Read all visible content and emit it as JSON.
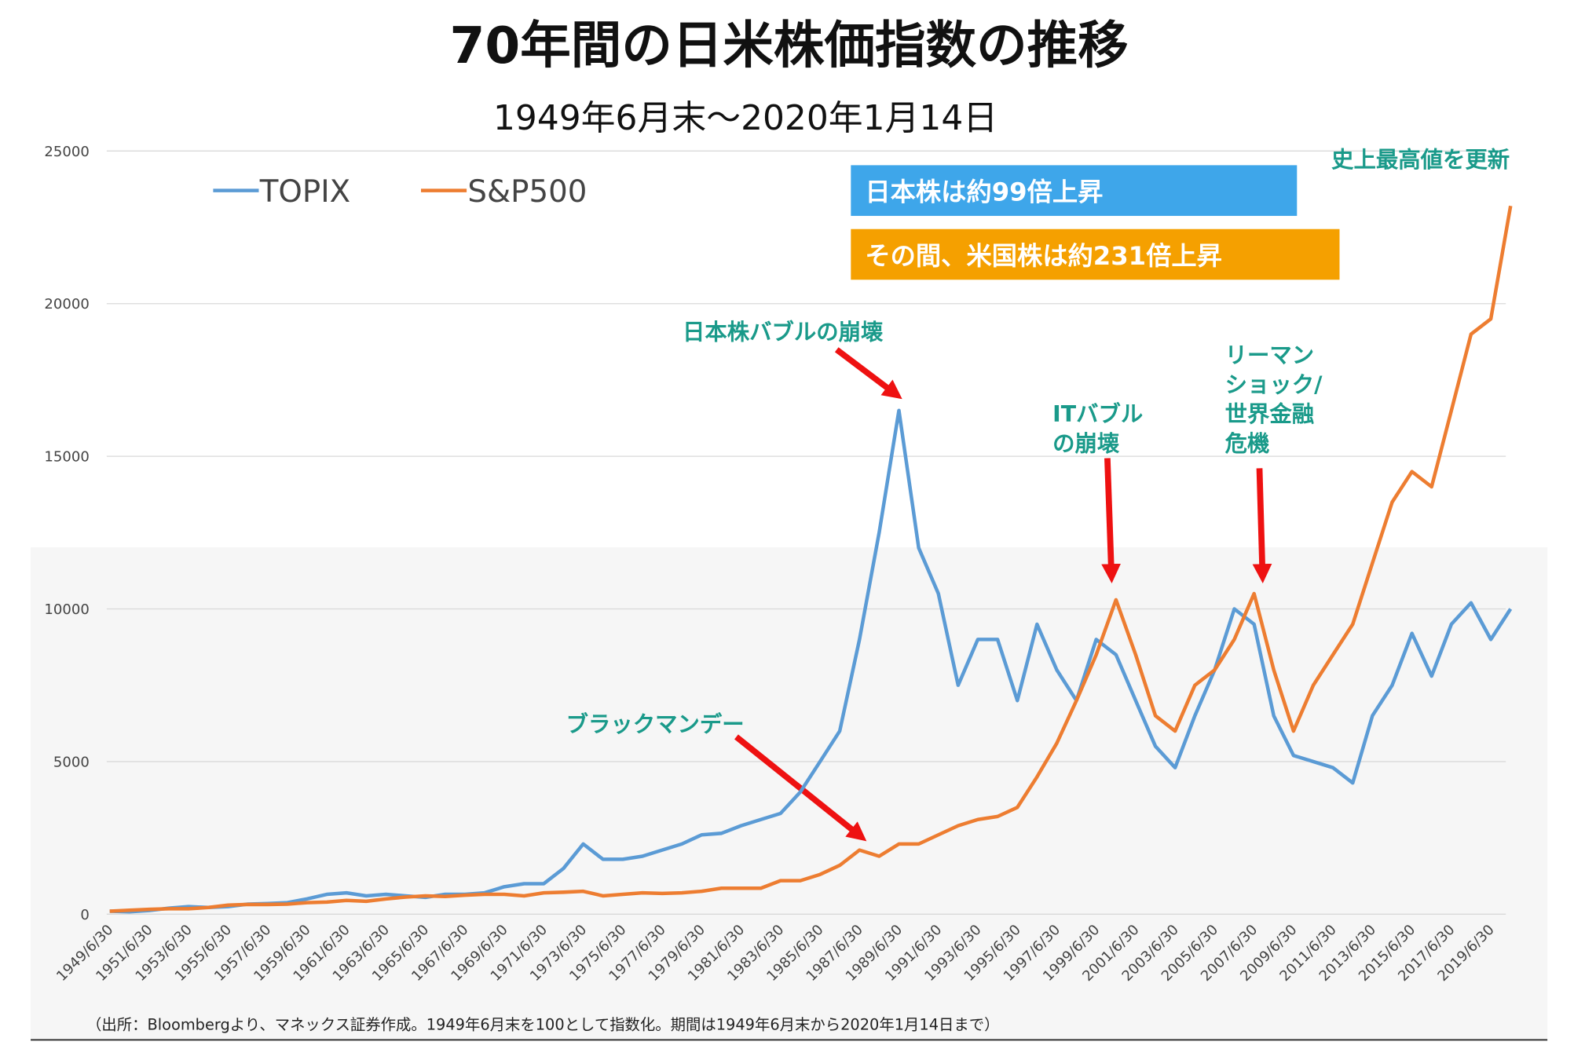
{
  "chart_data": {
    "type": "line",
    "title": "70年間の日米株価指数の推移",
    "subtitle": "1949年6月末～2020年1月14日",
    "source": "（出所：Bloombergより、マネックス証券作成。1949年6月末を100として指数化。期間は1949年6月末から2020年1月14日まで）",
    "categories": [
      "1949/6/30",
      null,
      "1951/6/30",
      null,
      "1953/6/30",
      null,
      "1955/6/30",
      null,
      "1957/6/30",
      null,
      "1959/6/30",
      null,
      "1961/6/30",
      null,
      "1963/6/30",
      null,
      "1965/6/30",
      null,
      "1967/6/30",
      null,
      "1969/6/30",
      null,
      "1971/6/30",
      null,
      "1973/6/30",
      null,
      "1975/6/30",
      null,
      "1977/6/30",
      null,
      "1979/6/30",
      null,
      "1981/6/30",
      null,
      "1983/6/30",
      null,
      "1985/6/30",
      null,
      "1987/6/30",
      null,
      "1989/6/30",
      null,
      "1991/6/30",
      null,
      "1993/6/30",
      null,
      "1995/6/30",
      null,
      "1997/6/30",
      null,
      "1999/6/30",
      null,
      "2001/6/30",
      null,
      "2003/6/30",
      null,
      "2005/6/30",
      null,
      "2007/6/30",
      null,
      "2009/6/30",
      null,
      "2011/6/30",
      null,
      "2013/6/30",
      null,
      "2015/6/30",
      null,
      "2017/6/30",
      null,
      "2019/6/30",
      null
    ],
    "series": [
      {
        "name": "TOPIX",
        "color": "#5b9bd5",
        "values": [
          100,
          80,
          120,
          200,
          250,
          220,
          250,
          330,
          350,
          380,
          500,
          650,
          700,
          600,
          650,
          600,
          550,
          650,
          650,
          700,
          900,
          1000,
          1000,
          1500,
          2300,
          1800,
          1800,
          1900,
          2100,
          2300,
          2600,
          2650,
          2900,
          3100,
          3300,
          4000,
          5000,
          6000,
          9000,
          12500,
          16500,
          12000,
          10500,
          7500,
          9000,
          9000,
          7000,
          9500,
          8000,
          7000,
          9000,
          8500,
          7000,
          5500,
          4800,
          6500,
          8000,
          10000,
          9500,
          6500,
          5200,
          5000,
          4800,
          4300,
          6500,
          7500,
          9200,
          7800,
          9500,
          10200,
          9000,
          10000
        ]
      },
      {
        "name": "S&P500",
        "color": "#ed7d31",
        "values": [
          100,
          130,
          160,
          180,
          180,
          220,
          300,
          320,
          320,
          330,
          380,
          400,
          450,
          420,
          500,
          560,
          600,
          580,
          620,
          650,
          650,
          600,
          700,
          720,
          750,
          600,
          650,
          700,
          680,
          700,
          750,
          850,
          850,
          850,
          1100,
          1100,
          1300,
          1600,
          2100,
          1900,
          2300,
          2300,
          2600,
          2900,
          3100,
          3200,
          3500,
          4500,
          5600,
          7000,
          8500,
          10300,
          8500,
          6500,
          6000,
          7500,
          8000,
          9000,
          10500,
          8000,
          6000,
          7500,
          8500,
          9500,
          11500,
          13500,
          14500,
          14000,
          16500,
          19000,
          19500,
          23200
        ]
      }
    ],
    "ylim": [
      0,
      25000
    ],
    "yticks": [
      0,
      5000,
      10000,
      15000,
      20000,
      25000
    ],
    "grid": true,
    "boxes": [
      {
        "text": "日本株は約99倍上昇",
        "color": "#3ea6ea"
      },
      {
        "text": "その間、米国株は約231倍上昇",
        "color": "#f5a000"
      }
    ],
    "annotations": [
      {
        "lines": [
          "史上最高値を更新"
        ]
      },
      {
        "lines": [
          "日本株バブルの崩壊"
        ]
      },
      {
        "lines": [
          "ITバブル",
          "の崩壊"
        ]
      },
      {
        "lines": [
          "リーマン",
          "ショック/",
          "世界金融",
          "危機"
        ]
      },
      {
        "lines": [
          "ブラックマンデー"
        ]
      }
    ]
  }
}
